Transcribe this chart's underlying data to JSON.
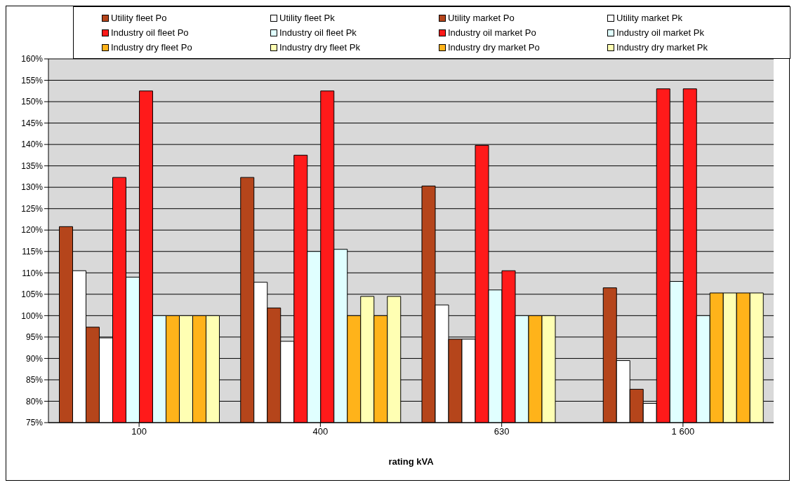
{
  "chart_data": {
    "type": "bar",
    "xlabel": "rating kVA",
    "categories": [
      "100",
      "400",
      "630",
      "1 600"
    ],
    "series": [
      {
        "name": "Utility fleet Po",
        "color": "#b5451b",
        "values": [
          120.8,
          132.3,
          130.3,
          106.5
        ]
      },
      {
        "name": "Utility fleet Pk",
        "color": "#ffffff",
        "values": [
          110.5,
          107.8,
          102.5,
          89.5
        ]
      },
      {
        "name": "Utility market Po",
        "color": "#b5451b",
        "values": [
          97.3,
          101.8,
          94.5,
          82.8
        ]
      },
      {
        "name": "Utility market Pk",
        "color": "#ffffff",
        "values": [
          94.8,
          94,
          94.5,
          79.5
        ]
      },
      {
        "name": "Industry oil fleet Po",
        "color": "#ff1a1a",
        "values": [
          132.3,
          137.5,
          139.8,
          153
        ]
      },
      {
        "name": "Industry oil fleet Pk",
        "color": "#e0ffff",
        "values": [
          109,
          115,
          106,
          108
        ]
      },
      {
        "name": "Industry oil market Po",
        "color": "#ff1a1a",
        "values": [
          152.5,
          152.5,
          110.5,
          153
        ]
      },
      {
        "name": "Industry oil market Pk",
        "color": "#e0ffff",
        "values": [
          100,
          115.5,
          100,
          100
        ]
      },
      {
        "name": "Industry dry fleet Po",
        "color": "#ffb31a",
        "values": [
          100,
          100,
          100,
          105.3
        ]
      },
      {
        "name": "Industry dry fleet Pk",
        "color": "#ffffb3",
        "values": [
          100,
          104.5,
          100,
          105.3
        ]
      },
      {
        "name": "Industry dry market Po",
        "color": "#ffb31a",
        "values": [
          100,
          100,
          null,
          105.3
        ]
      },
      {
        "name": "Industry dry market Pk",
        "color": "#ffffb3",
        "values": [
          100,
          104.5,
          null,
          105.3
        ]
      }
    ],
    "ylim": [
      75,
      160
    ],
    "yticks": [
      {
        "value": 75,
        "label": "75%"
      },
      {
        "value": 80,
        "label": "80%"
      },
      {
        "value": 85,
        "label": "85%"
      },
      {
        "value": 90,
        "label": "90%"
      },
      {
        "value": 95,
        "label": "95%"
      },
      {
        "value": 100,
        "label": "100%"
      },
      {
        "value": 105,
        "label": "105%"
      },
      {
        "value": 110,
        "label": "110%"
      },
      {
        "value": 115,
        "label": "115%"
      },
      {
        "value": 120,
        "label": "120%"
      },
      {
        "value": 125,
        "label": "125%"
      },
      {
        "value": 130,
        "label": "130%"
      },
      {
        "value": 135,
        "label": "135%"
      },
      {
        "value": 140,
        "label": "140%"
      },
      {
        "value": 145,
        "label": "145%"
      },
      {
        "value": 150,
        "label": "150%"
      },
      {
        "value": 155,
        "label": "155%"
      },
      {
        "value": 160,
        "label": "160%"
      }
    ],
    "grid": "y",
    "legend": "top"
  }
}
